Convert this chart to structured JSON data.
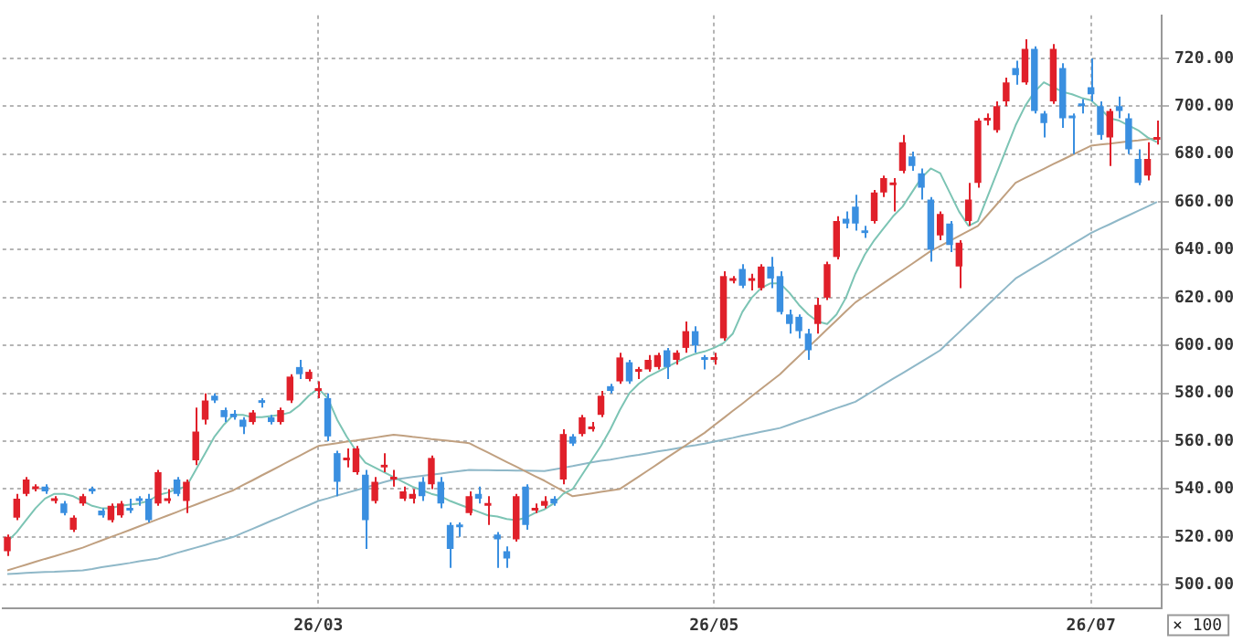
{
  "chart_data": {
    "type": "candlestick",
    "categories": [
      null,
      null,
      null,
      null,
      null,
      null,
      null,
      null,
      null,
      null,
      null,
      null,
      null,
      null,
      null,
      null,
      null,
      null,
      null,
      null,
      null,
      null,
      null,
      null,
      null,
      null,
      null,
      null,
      null,
      null,
      null,
      null,
      null,
      "26/03",
      null,
      null,
      null,
      null,
      null,
      null,
      null,
      null,
      null,
      null,
      null,
      null,
      null,
      null,
      null,
      null,
      null,
      null,
      null,
      null,
      null,
      null,
      null,
      null,
      null,
      null,
      null,
      null,
      null,
      null,
      null,
      null,
      null,
      null,
      null,
      null,
      null,
      null,
      null,
      null,
      null,
      "26/05",
      null,
      null,
      null,
      null,
      null,
      null,
      null,
      null,
      null,
      null,
      null,
      null,
      null,
      null,
      null,
      null,
      null,
      null,
      null,
      null,
      null,
      null,
      null,
      null,
      null,
      null,
      null,
      null,
      null,
      null,
      null,
      null,
      null,
      null,
      null,
      null,
      null,
      null,
      null,
      "26/07",
      null,
      null,
      null,
      null,
      null,
      null,
      null
    ],
    "ohlc": [
      [
        514,
        521,
        512,
        520
      ],
      [
        528,
        538,
        527,
        536
      ],
      [
        538,
        545,
        537,
        544
      ],
      [
        540,
        542,
        539,
        541
      ],
      [
        541,
        542,
        538,
        539
      ],
      [
        535,
        537,
        534,
        536
      ],
      [
        534,
        535,
        529,
        530
      ],
      [
        523,
        529,
        522,
        528
      ],
      [
        534,
        538,
        533,
        537
      ],
      [
        540,
        541,
        538,
        539
      ],
      [
        531,
        532,
        528,
        529
      ],
      [
        527,
        534,
        526,
        533
      ],
      [
        529,
        535,
        528,
        534
      ],
      [
        532,
        536,
        530,
        531
      ],
      [
        535,
        537,
        533,
        535
      ],
      [
        536,
        538,
        526,
        527
      ],
      [
        534,
        548,
        533,
        547
      ],
      [
        535,
        540,
        534,
        536
      ],
      [
        544,
        545,
        537,
        538
      ],
      [
        535,
        544,
        530,
        543
      ],
      [
        552,
        574,
        550,
        564
      ],
      [
        569,
        580,
        567,
        577
      ],
      [
        579,
        580,
        576,
        577
      ],
      [
        573,
        574,
        568,
        570
      ],
      [
        571.5,
        573,
        569,
        570
      ],
      [
        569,
        570,
        563,
        566
      ],
      [
        568,
        573,
        567,
        572
      ],
      [
        576,
        578,
        574,
        576
      ],
      [
        570,
        571,
        567,
        568
      ],
      [
        568,
        574,
        567,
        573
      ],
      [
        577,
        588,
        576,
        587
      ],
      [
        591,
        594,
        586,
        588
      ],
      [
        586,
        590,
        585,
        589
      ],
      [
        581,
        585,
        578,
        582
      ],
      [
        578,
        580,
        560,
        562
      ],
      [
        555,
        556,
        537,
        543
      ],
      [
        552,
        557,
        549,
        553
      ],
      [
        547,
        558,
        546,
        557
      ],
      [
        546,
        548,
        515,
        527
      ],
      [
        535,
        545,
        534,
        543
      ],
      [
        549,
        555,
        547,
        550
      ],
      [
        544,
        548,
        541,
        545
      ],
      [
        536,
        541,
        535,
        539
      ],
      [
        536,
        540,
        534,
        538
      ],
      [
        543,
        545,
        535,
        537
      ],
      [
        542,
        554,
        540,
        553
      ],
      [
        543,
        545,
        532,
        534
      ],
      [
        525,
        526,
        507,
        515
      ],
      [
        525,
        526,
        520,
        524
      ],
      [
        530,
        539,
        529,
        537
      ],
      [
        538,
        541,
        534,
        536
      ],
      [
        533,
        537,
        525,
        534
      ],
      [
        521,
        522,
        507,
        519
      ],
      [
        514,
        516,
        507,
        511
      ],
      [
        519,
        538,
        518,
        537
      ],
      [
        541,
        542,
        523,
        525
      ],
      [
        531,
        534,
        530,
        532
      ],
      [
        533,
        537,
        532,
        535
      ],
      [
        536,
        537,
        533,
        534
      ],
      [
        544,
        565,
        542,
        563
      ],
      [
        562,
        563,
        558,
        559
      ],
      [
        563,
        571,
        562,
        570
      ],
      [
        565,
        568,
        564,
        566
      ],
      [
        571,
        581,
        570,
        579
      ],
      [
        583,
        584,
        580,
        581
      ],
      [
        585,
        597,
        584,
        595
      ],
      [
        593,
        594,
        584,
        585
      ],
      [
        589,
        591,
        586,
        590
      ],
      [
        590,
        596,
        589,
        594
      ],
      [
        591,
        597,
        590,
        596
      ],
      [
        598,
        599,
        586,
        591
      ],
      [
        594,
        598,
        592,
        597
      ],
      [
        599,
        610,
        597,
        606
      ],
      [
        606,
        608,
        597,
        600
      ],
      [
        595,
        596,
        590,
        594
      ],
      [
        594,
        597,
        592,
        595
      ],
      [
        603,
        631,
        602,
        629
      ],
      [
        627,
        629,
        626,
        628
      ],
      [
        632,
        634,
        624,
        625
      ],
      [
        627,
        630,
        623,
        628
      ],
      [
        624,
        634,
        623,
        633
      ],
      [
        633,
        637,
        624,
        628
      ],
      [
        629,
        631,
        613,
        614
      ],
      [
        613,
        615,
        605,
        609
      ],
      [
        612,
        613,
        603,
        606
      ],
      [
        605,
        607,
        594,
        598
      ],
      [
        609,
        620,
        605,
        617
      ],
      [
        620,
        635,
        619,
        634
      ],
      [
        637,
        654,
        636,
        652
      ],
      [
        653,
        656,
        649,
        651
      ],
      [
        658,
        663,
        648,
        651
      ],
      [
        648,
        650,
        645,
        647
      ],
      [
        652,
        665,
        651,
        664
      ],
      [
        664,
        671,
        662,
        670
      ],
      [
        667,
        670,
        656,
        668
      ],
      [
        673,
        688,
        672,
        685
      ],
      [
        679,
        681,
        673,
        675
      ],
      [
        672,
        674,
        661,
        666
      ],
      [
        661,
        662,
        635,
        640
      ],
      [
        646,
        656,
        644,
        655
      ],
      [
        651,
        652,
        639,
        642
      ],
      [
        633,
        644,
        624,
        643
      ],
      [
        652,
        668,
        650,
        661
      ],
      [
        668,
        695,
        666,
        694
      ],
      [
        694,
        697,
        692,
        695
      ],
      [
        690,
        702,
        689,
        700
      ],
      [
        702,
        712,
        700,
        710
      ],
      [
        716,
        719,
        709,
        713
      ],
      [
        710,
        728,
        709,
        724
      ],
      [
        724,
        725,
        697,
        698
      ],
      [
        697,
        698,
        687,
        693
      ],
      [
        702,
        726,
        701,
        724
      ],
      [
        716,
        718,
        691,
        695
      ],
      [
        696,
        697,
        680,
        695
      ],
      [
        701,
        703,
        697,
        700
      ],
      [
        708,
        720,
        702,
        705
      ],
      [
        700,
        702,
        686,
        688
      ],
      [
        687,
        699,
        675,
        698
      ],
      [
        700,
        704,
        695,
        698
      ],
      [
        695,
        697,
        680,
        682
      ],
      [
        678,
        682,
        667,
        668
      ],
      [
        671,
        685,
        669,
        678
      ],
      [
        686,
        694,
        684,
        687
      ]
    ],
    "colors": [
      "#e0202a",
      "#e0202a",
      "#e0202a",
      "#e0202a",
      "#3a8fe0",
      "#e0202a",
      "#3a8fe0",
      "#e0202a",
      "#e0202a",
      "#3a8fe0",
      "#3a8fe0",
      "#e0202a",
      "#e0202a",
      "#3a8fe0",
      "#3a8fe0",
      "#3a8fe0",
      "#e0202a",
      "#e0202a",
      "#3a8fe0",
      "#e0202a",
      "#e0202a",
      "#e0202a",
      "#3a8fe0",
      "#3a8fe0",
      "#3a8fe0",
      "#3a8fe0",
      "#e0202a",
      "#3a8fe0",
      "#3a8fe0",
      "#e0202a",
      "#e0202a",
      "#3a8fe0",
      "#e0202a",
      "#e0202a",
      "#3a8fe0",
      "#3a8fe0",
      "#e0202a",
      "#e0202a",
      "#3a8fe0",
      "#e0202a",
      "#e0202a",
      "#e0202a",
      "#e0202a",
      "#e0202a",
      "#3a8fe0",
      "#e0202a",
      "#3a8fe0",
      "#3a8fe0",
      "#3a8fe0",
      "#e0202a",
      "#3a8fe0",
      "#e0202a",
      "#3a8fe0",
      "#3a8fe0",
      "#e0202a",
      "#3a8fe0",
      "#e0202a",
      "#e0202a",
      "#3a8fe0",
      "#e0202a",
      "#3a8fe0",
      "#e0202a",
      "#e0202a",
      "#e0202a",
      "#3a8fe0",
      "#e0202a",
      "#3a8fe0",
      "#e0202a",
      "#e0202a",
      "#e0202a",
      "#3a8fe0",
      "#e0202a",
      "#e0202a",
      "#3a8fe0",
      "#3a8fe0",
      "#e0202a",
      "#e0202a",
      "#e0202a",
      "#3a8fe0",
      "#e0202a",
      "#e0202a",
      "#3a8fe0",
      "#3a8fe0",
      "#3a8fe0",
      "#3a8fe0",
      "#3a8fe0",
      "#e0202a",
      "#e0202a",
      "#e0202a",
      "#3a8fe0",
      "#3a8fe0",
      "#3a8fe0",
      "#e0202a",
      "#e0202a",
      "#e0202a",
      "#e0202a",
      "#3a8fe0",
      "#3a8fe0",
      "#3a8fe0",
      "#e0202a",
      "#3a8fe0",
      "#e0202a",
      "#e0202a",
      "#e0202a",
      "#e0202a",
      "#e0202a",
      "#e0202a",
      "#3a8fe0",
      "#e0202a",
      "#3a8fe0",
      "#3a8fe0",
      "#e0202a",
      "#3a8fe0",
      "#3a8fe0",
      "#3a8fe0",
      "#3a8fe0",
      "#3a8fe0",
      "#e0202a",
      "#3a8fe0",
      "#3a8fe0",
      "#3a8fe0",
      "#e0202a",
      "#e0202a"
    ],
    "series": [
      {
        "type": "line",
        "color": "#7cc4b4",
        "values": [
          518,
          522,
          527,
          532,
          536,
          538,
          538,
          537,
          535,
          533,
          532,
          532,
          533,
          533.5,
          534,
          535,
          537.5,
          538.5,
          540,
          541,
          548,
          555,
          562,
          567,
          571,
          571,
          570,
          570,
          570.5,
          571,
          572,
          575,
          579,
          582,
          578,
          569,
          562,
          556,
          551,
          549,
          547,
          545,
          543,
          541,
          539.5,
          538,
          537,
          535,
          533.5,
          532,
          530.5,
          529,
          528.5,
          527.5,
          527,
          528,
          530,
          531.5,
          534,
          538,
          540,
          546,
          552,
          558,
          565,
          573,
          580,
          584,
          587,
          589,
          591,
          593,
          595,
          596.5,
          597.5,
          599,
          601,
          605,
          614,
          620,
          624,
          626,
          626,
          622,
          617,
          613,
          610,
          609,
          613,
          620,
          630,
          638,
          644,
          649,
          654,
          658,
          664,
          670,
          674,
          672,
          664,
          656,
          650,
          652,
          662,
          672,
          682,
          692,
          700,
          706,
          710,
          708,
          706,
          705,
          703.5,
          702.5,
          699,
          695,
          694,
          692,
          690,
          687,
          685
        ]
      },
      {
        "type": "line",
        "color": "#c0a080",
        "values": [
          506,
          507.2,
          508.4,
          509.6,
          510.8,
          511.9,
          513.1,
          514.3,
          515.5,
          517,
          518.5,
          520,
          521.4,
          522.9,
          524.4,
          525.9,
          527.4,
          528.9,
          530.4,
          532,
          533.5,
          535,
          536.5,
          538,
          539.5,
          541.6,
          543.6,
          545.7,
          547.7,
          549.8,
          551.9,
          553.9,
          556,
          558,
          558.6,
          559.2,
          559.8,
          560.3,
          560.9,
          561.5,
          562.1,
          562.7,
          562.3,
          561.8,
          561.4,
          560.9,
          560.5,
          560.1,
          559.6,
          559.2,
          557.2,
          555.3,
          553.3,
          551.3,
          549.4,
          547.4,
          545.4,
          543.5,
          541.3,
          539.2,
          537,
          537.6,
          538.2,
          538.8,
          539.4,
          540,
          542.6,
          545.2,
          547.8,
          550.4,
          553.1,
          555.7,
          558.3,
          560.9,
          563.5,
          566.6,
          569.6,
          572.7,
          575.7,
          578.8,
          581.9,
          584.9,
          588,
          591.8,
          595.5,
          599.3,
          603,
          606.8,
          610.5,
          614.3,
          618,
          620.7,
          623.4,
          626.1,
          628.8,
          631.4,
          634.1,
          636.8,
          639.5,
          641.6,
          643.7,
          645.8,
          647.9,
          650,
          654.5,
          659,
          663.5,
          668,
          670,
          671.9,
          673.8,
          675.8,
          677.7,
          679.6,
          681.6,
          683.5,
          684,
          684.4,
          684.9,
          685.3,
          685.7,
          686.2,
          686.6
        ]
      },
      {
        "type": "line",
        "color": "#8fb8c8",
        "values": [
          504.5,
          504.7,
          504.9,
          505.1,
          505.3,
          505.4,
          505.6,
          505.8,
          506,
          506.6,
          507.3,
          507.9,
          508.5,
          509.1,
          509.8,
          510.4,
          511,
          512.1,
          513.3,
          514.4,
          515.5,
          516.6,
          517.8,
          518.9,
          520,
          521.7,
          523.3,
          525,
          526.7,
          528.3,
          530,
          531.7,
          533.3,
          535,
          536.1,
          537.3,
          538.4,
          539.5,
          540.6,
          541.8,
          542.9,
          544,
          544.5,
          545,
          545.5,
          546,
          546.5,
          547,
          547.5,
          548,
          547.9,
          547.9,
          547.8,
          547.8,
          547.7,
          547.7,
          547.6,
          547.5,
          548.2,
          548.9,
          549.6,
          550.4,
          551.1,
          551.8,
          552.3,
          553,
          553.7,
          554.3,
          555,
          555.7,
          556.3,
          557,
          557.7,
          558.3,
          559,
          559.8,
          560.6,
          561.4,
          562.3,
          563.1,
          563.9,
          564.7,
          565.5,
          566.9,
          568.3,
          569.6,
          571,
          572.4,
          573.8,
          575.1,
          576.5,
          578.9,
          581.3,
          583.7,
          586.1,
          588.4,
          590.8,
          593.2,
          595.6,
          598,
          601.8,
          605.5,
          609.3,
          613,
          616.8,
          620.5,
          624.3,
          628,
          630.4,
          632.8,
          635.1,
          637.5,
          639.9,
          642.3,
          644.6,
          647,
          648.9,
          650.7,
          652.6,
          654.4,
          656.3,
          658.1,
          660
        ]
      }
    ],
    "ylim": [
      490,
      738
    ],
    "yticks": [
      {
        "value": 500,
        "label": "500.00"
      },
      {
        "value": 520,
        "label": "520.00"
      },
      {
        "value": 540,
        "label": "540.00"
      },
      {
        "value": 560,
        "label": "560.00"
      },
      {
        "value": 580,
        "label": "580.00"
      },
      {
        "value": 600,
        "label": "600.00"
      },
      {
        "value": 620,
        "label": "620.00"
      },
      {
        "value": 640,
        "label": "640.00"
      },
      {
        "value": 660,
        "label": "660.00"
      },
      {
        "value": 680,
        "label": "680.00"
      },
      {
        "value": 700,
        "label": "700.00"
      },
      {
        "value": 720,
        "label": "720.00"
      }
    ],
    "grid": true,
    "annotations": [
      "× 100"
    ]
  }
}
